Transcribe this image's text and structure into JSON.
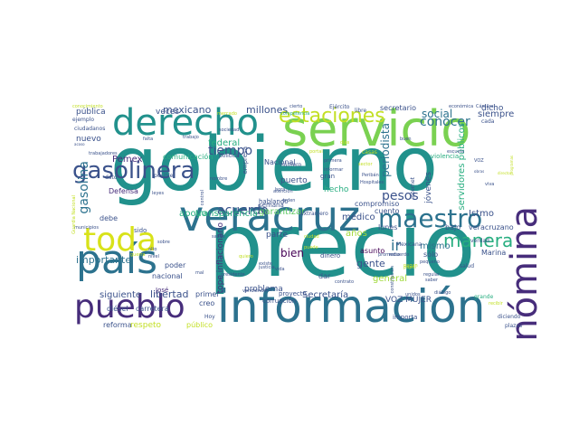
{
  "palette": {
    "dark_purple": "#440154",
    "indigo": "#472d7b",
    "blue": "#3b528b",
    "steel": "#2c728e",
    "teal": "#21918c",
    "sea": "#28ae80",
    "green": "#5ec962",
    "lime": "#addc30",
    "yellow": "#fde725"
  },
  "words": [
    {
      "text": "gobierno",
      "color": "#21918c"
    },
    {
      "text": "precio",
      "color": "#21918c"
    },
    {
      "text": "servicio",
      "color": "#7ad151"
    },
    {
      "text": "información",
      "color": "#2c728e"
    },
    {
      "text": "veracruz",
      "color": "#2c728e"
    },
    {
      "text": "derecho",
      "color": "#21918c"
    },
    {
      "text": "país",
      "color": "#2c728e"
    },
    {
      "text": "pueblo",
      "color": "#472d7b"
    },
    {
      "text": "nómina",
      "color": "#472d7b"
    },
    {
      "text": "toda",
      "color": "#d8e219"
    },
    {
      "text": "estaciones",
      "color": "#c2df23"
    },
    {
      "text": "gasolinera",
      "color": "#3b528b"
    },
    {
      "text": "maestro",
      "color": "#2c728e"
    },
    {
      "text": "manera",
      "color": "#28ae80"
    },
    {
      "text": "mexicano",
      "color": "#3b528b"
    },
    {
      "text": "millones",
      "color": "#3b528b"
    },
    {
      "text": "tiempo",
      "color": "#3b528b"
    },
    {
      "text": "social",
      "color": "#2c728e"
    },
    {
      "text": "conocer",
      "color": "#2c728e"
    },
    {
      "text": "siempre",
      "color": "#3b528b"
    },
    {
      "text": "servidores públicos",
      "color": "#28ae80"
    },
    {
      "text": "gasolina",
      "color": "#2c728e"
    },
    {
      "text": "Pemex",
      "color": "#472d7b"
    },
    {
      "text": "federal",
      "color": "#28ae80"
    },
    {
      "text": "acuerdo",
      "color": "#3b528b"
    },
    {
      "text": "apoyo",
      "color": "#28ae80"
    },
    {
      "text": "transparencia",
      "color": "#28ae80"
    },
    {
      "text": "garantizar",
      "color": "#5ec962"
    },
    {
      "text": "pesos",
      "color": "#3b528b"
    },
    {
      "text": "periodista",
      "color": "#2c728e"
    },
    {
      "text": "importante",
      "color": "#2c728e"
    },
    {
      "text": "siguiente",
      "color": "#3b528b"
    },
    {
      "text": "libertad",
      "color": "#3b528b"
    },
    {
      "text": "gente",
      "color": "#3b528b"
    },
    {
      "text": "años",
      "color": "#a0da39"
    },
    {
      "text": "general",
      "color": "#a0da39"
    },
    {
      "text": "mismo",
      "color": "#2c728e"
    },
    {
      "text": "bien",
      "color": "#440154"
    },
    {
      "text": "ir",
      "color": "#2c728e"
    },
    {
      "text": "médico",
      "color": "#3b528b"
    },
    {
      "text": "Istmo",
      "color": "#3b528b"
    },
    {
      "text": "jóvenes",
      "color": "#3b528b"
    },
    {
      "text": "Secretaría",
      "color": "#3b528b"
    },
    {
      "text": "VOZ MUJER",
      "color": "#3b528b"
    },
    {
      "text": "problema",
      "color": "#3b528b"
    },
    {
      "text": "tope inflacionario",
      "color": "#472d7b"
    },
    {
      "text": "nuevo",
      "color": "#3b528b"
    },
    {
      "text": "público",
      "color": "#c2df23"
    },
    {
      "text": "pública",
      "color": "#3b528b"
    },
    {
      "text": "veces",
      "color": "#3b528b"
    },
    {
      "text": "dicho",
      "color": "#3b528b"
    },
    {
      "text": "secretario",
      "color": "#3b528b"
    },
    {
      "text": "comunicación",
      "color": "#28ae80"
    },
    {
      "text": "Defensa",
      "color": "#472d7b"
    },
    {
      "text": "hecho",
      "color": "#28ae80"
    },
    {
      "text": "puerto",
      "color": "#3b528b"
    },
    {
      "text": "compromiso",
      "color": "#3b528b"
    },
    {
      "text": "cuento",
      "color": "#3b528b"
    },
    {
      "text": "lunes",
      "color": "#3b528b"
    },
    {
      "text": "asunto",
      "color": "#440154"
    },
    {
      "text": "sólo",
      "color": "#3b528b"
    },
    {
      "text": "Marina",
      "color": "#3b528b"
    },
    {
      "text": "poder",
      "color": "#3b528b"
    },
    {
      "text": "diésel",
      "color": "#3b528b"
    },
    {
      "text": "parte",
      "color": "#3b528b"
    },
    {
      "text": "Nacional",
      "color": "#3b528b"
    },
    {
      "text": "nacional",
      "color": "#3b528b"
    },
    {
      "text": "reforma",
      "color": "#3b528b"
    },
    {
      "text": "respeto",
      "color": "#c2df23"
    },
    {
      "text": "debe",
      "color": "#3b528b"
    },
    {
      "text": "sido",
      "color": "#3b528b"
    },
    {
      "text": "Hoy",
      "color": "#3b528b"
    },
    {
      "text": "creo",
      "color": "#3b528b"
    },
    {
      "text": "primer",
      "color": "#3b528b"
    },
    {
      "text": "carretera",
      "color": "#3b528b"
    },
    {
      "text": "José",
      "color": "#472d7b"
    },
    {
      "text": "veracruzano",
      "color": "#3b528b"
    },
    {
      "text": "bajo",
      "color": "#3b528b"
    },
    {
      "text": "extranjero",
      "color": "#3b528b"
    },
    {
      "text": "empresa",
      "color": "#3b528b"
    },
    {
      "text": "semana",
      "color": "#3b528b"
    },
    {
      "text": "hablando",
      "color": "#3b528b"
    },
    {
      "text": "corrupción",
      "color": "#3b528b"
    },
    {
      "text": "proyecto",
      "color": "#3b528b"
    },
    {
      "text": "dinero",
      "color": "#3b528b"
    },
    {
      "text": "Mexicana",
      "color": "#3b528b"
    },
    {
      "text": "verdad",
      "color": "#3b528b"
    },
    {
      "text": "salud",
      "color": "#3b528b"
    },
    {
      "text": "importa",
      "color": "#3b528b"
    },
    {
      "text": "plazas",
      "color": "#3b528b"
    },
    {
      "text": "diciendo",
      "color": "#3b528b"
    },
    {
      "text": "grande",
      "color": "#28ae80"
    },
    {
      "text": "Ejército",
      "color": "#3b528b"
    },
    {
      "text": "económica",
      "color": "#3b528b"
    },
    {
      "text": "Cámara",
      "color": "#3b528b"
    },
    {
      "text": "cada",
      "color": "#3b528b"
    },
    {
      "text": "violencia",
      "color": "#28ae80"
    },
    {
      "text": "Internet",
      "color": "#3b528b"
    },
    {
      "text": "política",
      "color": "#3b528b"
    },
    {
      "text": "Hospitales",
      "color": "#3b528b"
    },
    {
      "text": "Peribán",
      "color": "#3b528b"
    },
    {
      "text": "ciudadanos",
      "color": "#3b528b"
    },
    {
      "text": "gran",
      "color": "#3b528b"
    },
    {
      "text": "posible",
      "color": "#3b528b"
    },
    {
      "text": "leyes",
      "color": "#3b528b"
    },
    {
      "text": "nombre",
      "color": "#3b528b"
    },
    {
      "text": "control",
      "color": "#3b528b"
    },
    {
      "text": "libre",
      "color": "#3b528b"
    },
    {
      "text": "cierto",
      "color": "#3b528b"
    },
    {
      "text": "buen",
      "color": "#3b528b"
    },
    {
      "text": "falta",
      "color": "#3b528b"
    },
    {
      "text": "competencia",
      "color": "#28ae80"
    },
    {
      "text": "número",
      "color": "#3b528b"
    },
    {
      "text": "casas",
      "color": "#c2df23"
    },
    {
      "text": "portal",
      "color": "#c2df23"
    },
    {
      "text": "saber",
      "color": "#3b528b"
    },
    {
      "text": "dato",
      "color": "#3b528b"
    },
    {
      "text": "municipios",
      "color": "#3b528b"
    },
    {
      "text": "mal",
      "color": "#3b528b"
    },
    {
      "text": "existe",
      "color": "#3b528b"
    },
    {
      "text": "justicia",
      "color": "#3b528b"
    },
    {
      "text": "ejemplo",
      "color": "#3b528b"
    },
    {
      "text": "alto",
      "color": "#3b528b"
    },
    {
      "text": "dar",
      "color": "#3b528b"
    },
    {
      "text": "regular",
      "color": "#3b528b"
    },
    {
      "text": "pequeño",
      "color": "#3b528b"
    },
    {
      "text": "promedio",
      "color": "#3b528b"
    },
    {
      "text": "recuerdo",
      "color": "#3b528b"
    },
    {
      "text": "diálogo",
      "color": "#3b528b"
    },
    {
      "text": "vida",
      "color": "#3b528b"
    },
    {
      "text": "vendiendo",
      "color": "#3b528b"
    },
    {
      "text": "viva",
      "color": "#3b528b"
    },
    {
      "text": "trabajo",
      "color": "#3b528b"
    },
    {
      "text": "atención",
      "color": "#3b528b"
    },
    {
      "text": "informar",
      "color": "#3b528b"
    },
    {
      "text": "papel",
      "color": "#c2df23"
    },
    {
      "text": "Guardia Nacional",
      "color": "#c2df23"
    },
    {
      "text": "acoso",
      "color": "#3b528b"
    },
    {
      "text": "trabajadores",
      "color": "#3b528b"
    },
    {
      "text": "conocimiento",
      "color": "#c2df23"
    },
    {
      "text": "mercado",
      "color": "#c2df23"
    },
    {
      "text": "programas",
      "color": "#c2df23"
    },
    {
      "text": "orden",
      "color": "#3b528b"
    },
    {
      "text": "VOZ",
      "color": "#3b528b"
    },
    {
      "text": "constitución",
      "color": "#3b528b"
    },
    {
      "text": "contrato",
      "color": "#3b528b"
    },
    {
      "text": "ciudad",
      "color": "#c2df23"
    },
    {
      "text": "días",
      "color": "#c2df23"
    },
    {
      "text": "sociedad",
      "color": "#3b528b"
    },
    {
      "text": "unidos",
      "color": "#3b528b"
    },
    {
      "text": "puede",
      "color": "#c2df23"
    },
    {
      "text": "pagan",
      "color": "#c2df23"
    },
    {
      "text": "hora",
      "color": "#3b528b"
    },
    {
      "text": "presidente",
      "color": "#3b528b"
    },
    {
      "text": "director",
      "color": "#c2df23"
    },
    {
      "text": "sector",
      "color": "#c2df23"
    },
    {
      "text": "quiero",
      "color": "#c2df23"
    },
    {
      "text": "primera",
      "color": "#3b528b"
    },
    {
      "text": "recibir",
      "color": "#c2df23"
    },
    {
      "text": "obras",
      "color": "#3b528b"
    },
    {
      "text": "sabes",
      "color": "#3b528b"
    },
    {
      "text": "nivel",
      "color": "#3b528b"
    },
    {
      "text": "escuela",
      "color": "#3b528b"
    },
    {
      "text": "guerra",
      "color": "#c2df23"
    },
    {
      "text": "sobre",
      "color": "#3b528b"
    }
  ]
}
